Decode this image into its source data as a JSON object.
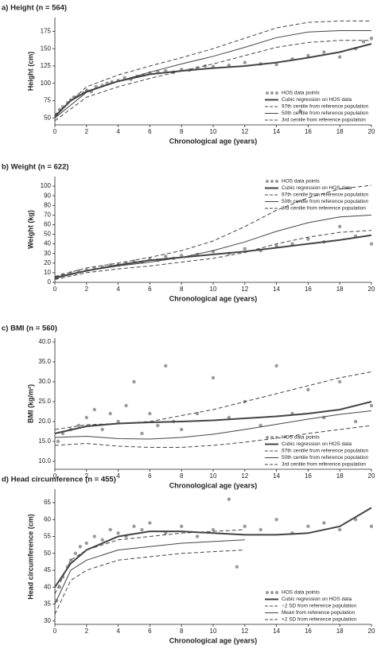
{
  "chart_data": [
    {
      "type": "scatter",
      "title": "a) Height (n = 564)",
      "x_label": "Chronological age (years)",
      "y_label": "Height (cm)",
      "xlim": [
        0,
        20
      ],
      "xticks": [
        0,
        2,
        4,
        6,
        8,
        10,
        12,
        14,
        16,
        18,
        20
      ],
      "ylim": [
        40,
        195
      ],
      "yticks": [
        50,
        75,
        100,
        125,
        150,
        175
      ],
      "legend": "lower right",
      "series": [
        {
          "name": "HOS data points",
          "mode": "markers",
          "color": "#9a9a9a",
          "x": [
            0.1,
            0.3,
            0.5,
            0.8,
            1,
            1.2,
            1.5,
            1.8,
            2,
            2.3,
            2.6,
            3,
            3.3,
            3.6,
            4,
            4.4,
            4.8,
            5.2,
            5.6,
            6,
            6.5,
            7,
            7.5,
            8,
            8.5,
            9,
            9.5,
            10,
            11,
            12,
            13,
            14,
            15,
            15.5,
            16,
            17,
            18,
            19,
            19.5,
            20
          ],
          "values": [
            55,
            62,
            66,
            72,
            76,
            80,
            83,
            86,
            90,
            88,
            95,
            97,
            100,
            102,
            104,
            108,
            106,
            110,
            112,
            115,
            117,
            118,
            116,
            120,
            119,
            122,
            125,
            124,
            126,
            130,
            128,
            127,
            135,
            60,
            140,
            145,
            138,
            150,
            160,
            165
          ]
        },
        {
          "name": "Cubic regression on HOS data",
          "mode": "lines",
          "bold": true,
          "color": "#444444",
          "x": [
            0,
            1,
            2,
            4,
            6,
            8,
            10,
            12,
            14,
            16,
            18,
            20
          ],
          "values": [
            52,
            75,
            88,
            103,
            113,
            118,
            122,
            125,
            130,
            137,
            145,
            157
          ]
        },
        {
          "name": "97th centile from reference population",
          "mode": "lines",
          "dash": true,
          "color": "#444444",
          "x": [
            0,
            2,
            4,
            6,
            8,
            10,
            12,
            14,
            16,
            18,
            20
          ],
          "values": [
            54,
            95,
            112,
            125,
            137,
            150,
            165,
            180,
            188,
            190,
            190
          ]
        },
        {
          "name": "50th centile from reference population",
          "mode": "lines",
          "color": "#444444",
          "x": [
            0,
            2,
            4,
            6,
            8,
            10,
            12,
            14,
            16,
            18,
            20
          ],
          "values": [
            50,
            87,
            103,
            116,
            128,
            139,
            152,
            166,
            174,
            176,
            176
          ]
        },
        {
          "name": "3rd centile from reference population",
          "mode": "lines",
          "dash": true,
          "color": "#444444",
          "x": [
            0,
            2,
            4,
            6,
            8,
            10,
            12,
            14,
            16,
            18,
            20
          ],
          "values": [
            46,
            80,
            95,
            107,
            118,
            128,
            140,
            152,
            159,
            162,
            162
          ]
        }
      ]
    },
    {
      "type": "scatter",
      "title": "b) Weight (n = 622)",
      "x_label": "Chronological age (years)",
      "y_label": "Weight (kg)",
      "xlim": [
        0,
        20
      ],
      "xticks": [
        0,
        2,
        4,
        6,
        8,
        10,
        12,
        14,
        16,
        18,
        20
      ],
      "ylim": [
        0,
        110
      ],
      "yticks": [
        0,
        10,
        20,
        30,
        40,
        50,
        60,
        70,
        80,
        90,
        100
      ],
      "legend": "upper right",
      "series": [
        {
          "name": "HOS data points",
          "mode": "markers",
          "color": "#9a9a9a",
          "x": [
            0.1,
            0.5,
            1,
            1.5,
            2,
            2.5,
            3,
            3.5,
            4,
            4.5,
            5,
            5.5,
            6,
            6.5,
            7,
            7.5,
            8,
            9,
            10,
            11,
            12,
            13,
            14,
            15,
            16,
            17,
            18,
            19,
            20
          ],
          "values": [
            5,
            8,
            10,
            12,
            13,
            15,
            16,
            18,
            18,
            20,
            22,
            21,
            24,
            23,
            27,
            25,
            28,
            29,
            32,
            30,
            35,
            33,
            38,
            40,
            45,
            42,
            58,
            48,
            40
          ]
        },
        {
          "name": "Cubic regression on HOS data",
          "mode": "lines",
          "bold": true,
          "color": "#444444",
          "x": [
            0,
            2,
            4,
            6,
            8,
            10,
            12,
            14,
            16,
            18,
            20
          ],
          "values": [
            5,
            12,
            18,
            23,
            26,
            29,
            32,
            36,
            40,
            44,
            49
          ]
        },
        {
          "name": "97th centile from reference population",
          "mode": "lines",
          "dash": true,
          "color": "#444444",
          "x": [
            0,
            2,
            4,
            6,
            8,
            10,
            12,
            14,
            16,
            18,
            20
          ],
          "values": [
            6,
            15,
            20,
            26,
            33,
            43,
            58,
            75,
            88,
            97,
            101
          ]
        },
        {
          "name": "50th centile from reference population",
          "mode": "lines",
          "color": "#444444",
          "x": [
            0,
            2,
            4,
            6,
            8,
            10,
            12,
            14,
            16,
            18,
            20
          ],
          "values": [
            4,
            12,
            17,
            21,
            26,
            33,
            42,
            53,
            62,
            68,
            70
          ]
        },
        {
          "name": "3rd centile from reference population",
          "mode": "lines",
          "dash": true,
          "color": "#444444",
          "x": [
            0,
            2,
            4,
            6,
            8,
            10,
            12,
            14,
            16,
            18,
            20
          ],
          "values": [
            3,
            10,
            14,
            17,
            21,
            25,
            31,
            40,
            47,
            52,
            54
          ]
        }
      ]
    },
    {
      "type": "scatter",
      "title": "c) BMI (n = 560)",
      "x_label": "Chronological age (years)",
      "y_label": "BMI (kg/m²)",
      "xlim": [
        0,
        20
      ],
      "xticks": [
        0,
        2,
        4,
        6,
        8,
        10,
        12,
        14,
        16,
        18,
        20
      ],
      "ylim": [
        8,
        41
      ],
      "yticks": [
        {
          "value": 10,
          "label": "10.0"
        },
        {
          "value": 15,
          "label": "15.0"
        },
        {
          "value": 20,
          "label": "20.0"
        },
        {
          "value": 25,
          "label": "25.0"
        },
        {
          "value": 30,
          "label": "30.0"
        },
        {
          "value": 35,
          "label": "35.0"
        },
        {
          "value": 40,
          "label": "40.0"
        }
      ],
      "legend": "lower right",
      "series": [
        {
          "name": "HOS data points",
          "mode": "markers",
          "color": "#9a9a9a",
          "x": [
            0.2,
            0.5,
            1,
            1.5,
            2,
            2.5,
            3,
            3.5,
            4,
            4.5,
            5,
            5.5,
            6,
            6.5,
            7,
            7.5,
            8,
            9,
            10,
            11,
            12,
            13,
            14,
            15,
            16,
            17,
            18,
            19,
            20
          ],
          "values": [
            15,
            17,
            18,
            19,
            21,
            23,
            18,
            22,
            20,
            24,
            30,
            17,
            22,
            19,
            34,
            20,
            18,
            22,
            31,
            21,
            25,
            19,
            34,
            22,
            28,
            21,
            30,
            20,
            24
          ]
        },
        {
          "name": "Cubic regression on HOS data",
          "mode": "lines",
          "bold": true,
          "color": "#444444",
          "x": [
            0,
            2,
            4,
            6,
            8,
            10,
            12,
            14,
            16,
            18,
            20
          ],
          "values": [
            17,
            18.8,
            19.5,
            19.8,
            20,
            20.3,
            20.8,
            21.3,
            22,
            23,
            25
          ]
        },
        {
          "name": "97th centile from reference population",
          "mode": "lines",
          "dash": true,
          "color": "#444444",
          "x": [
            0,
            2,
            4,
            6,
            8,
            10,
            12,
            14,
            16,
            18,
            20
          ],
          "values": [
            18,
            19.2,
            19.5,
            20,
            21.5,
            23,
            25,
            27,
            29,
            31,
            32.5
          ]
        },
        {
          "name": "50th centile from reference population",
          "mode": "lines",
          "color": "#444444",
          "x": [
            0,
            2,
            4,
            6,
            8,
            10,
            12,
            14,
            16,
            18,
            20
          ],
          "values": [
            16,
            16.3,
            15.7,
            15.6,
            16,
            16.8,
            18,
            19.3,
            20.6,
            21.8,
            22.7
          ]
        },
        {
          "name": "3rd centile from reference population",
          "mode": "lines",
          "dash": true,
          "color": "#444444",
          "x": [
            0,
            2,
            4,
            6,
            8,
            10,
            12,
            14,
            16,
            18,
            20
          ],
          "values": [
            14,
            14.5,
            13.8,
            13.5,
            13.5,
            14,
            14.8,
            15.8,
            17,
            18,
            19
          ]
        }
      ]
    },
    {
      "type": "scatter",
      "title": "d) Head circumference (n = 455)",
      "x_label": "Chronological age (years)",
      "y_label": "Head circumference (cm)",
      "xlim": [
        0,
        20
      ],
      "xticks": [
        0,
        2,
        4,
        6,
        8,
        10,
        12,
        14,
        16,
        18,
        20
      ],
      "ylim": [
        29,
        69
      ],
      "yticks": [
        30,
        35,
        40,
        45,
        50,
        55,
        60,
        65
      ],
      "legend": "lower right",
      "series": [
        {
          "name": "HOS data points",
          "mode": "markers",
          "color": "#9a9a9a",
          "x": [
            0.1,
            0.3,
            0.5,
            0.8,
            1,
            1.3,
            1.6,
            2,
            2.5,
            3,
            3.5,
            4,
            4.5,
            5,
            5.5,
            6,
            7,
            8,
            9,
            10,
            11,
            11.5,
            12,
            13,
            14,
            15,
            16,
            17,
            18,
            19,
            20
          ],
          "values": [
            36,
            40,
            43,
            46,
            48,
            50,
            52,
            53,
            55,
            54,
            57,
            56,
            55,
            58,
            57,
            59,
            56,
            58,
            55,
            57,
            66,
            46,
            58,
            57,
            60,
            56,
            58,
            59,
            57,
            60,
            58
          ]
        },
        {
          "name": "Cubic regression on HOS data",
          "mode": "lines",
          "bold": true,
          "color": "#444444",
          "x": [
            0,
            1,
            2,
            4,
            6,
            8,
            10,
            12,
            14,
            16,
            18,
            20
          ],
          "values": [
            40,
            47,
            51,
            55,
            56.5,
            56.5,
            56,
            55.5,
            55.5,
            56,
            58,
            63.5
          ]
        },
        {
          "name": "−2 SD from reference population",
          "mode": "lines",
          "dash": true,
          "color": "#444444",
          "x": [
            0,
            1,
            2,
            4,
            6,
            8,
            10,
            12
          ],
          "values": [
            32,
            42,
            45,
            48,
            49,
            50,
            50.5,
            51
          ]
        },
        {
          "name": "Mean from reference population",
          "mode": "lines",
          "color": "#444444",
          "x": [
            0,
            1,
            2,
            4,
            6,
            8,
            10,
            12
          ],
          "values": [
            35,
            45,
            48,
            51,
            52,
            53,
            53.5,
            54
          ]
        },
        {
          "name": "+2 SD from reference population",
          "mode": "lines",
          "dash": true,
          "color": "#444444",
          "x": [
            0,
            1,
            2,
            4,
            6,
            8,
            10,
            12
          ],
          "values": [
            38,
            48,
            51,
            54,
            55,
            56,
            56.5,
            57
          ]
        }
      ]
    }
  ]
}
